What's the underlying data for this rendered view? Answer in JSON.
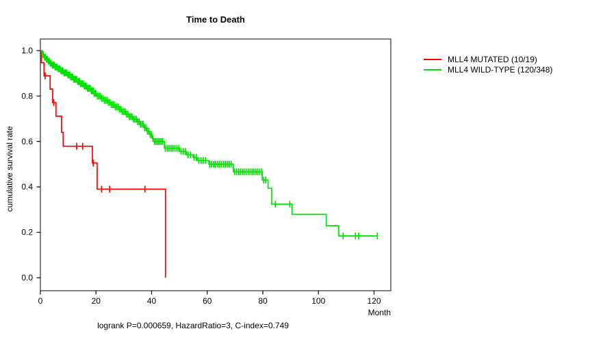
{
  "chart_data": {
    "type": "line",
    "subtype": "kaplan-meier-step",
    "title": "Time to Death",
    "xlabel": "Month",
    "ylabel": "cumulative survival rate",
    "annotation": "logrank P=0.000659, HazardRatio=3, C-index=0.749",
    "xlim": [
      0,
      126
    ],
    "ylim": [
      0.0,
      1.0
    ],
    "grid": false,
    "legend_position": "right-outside",
    "x_tick_values": [
      0,
      20,
      40,
      60,
      80,
      100,
      120
    ],
    "x_tick_labels": [
      "0",
      "20",
      "40",
      "60",
      "80",
      "100",
      "120"
    ],
    "y_tick_values": [
      1.0,
      0.8,
      0.6,
      0.4,
      0.2,
      0.0
    ],
    "y_tick_labels": [
      "1.0",
      "0.8",
      "0.6",
      "0.4",
      "0.2",
      "0.0"
    ],
    "series": [
      {
        "name": "MLL4 MUTATED (10/19)",
        "color": "#ff0000",
        "steps": [
          [
            0,
            1.0
          ],
          [
            0.35,
            0.947
          ],
          [
            1.3,
            0.889
          ],
          [
            3.5,
            0.831
          ],
          [
            4.4,
            0.771
          ],
          [
            5.6,
            0.711
          ],
          [
            7.6,
            0.64
          ],
          [
            8.2,
            0.579
          ],
          [
            18.7,
            0.505
          ],
          [
            20.4,
            0.39
          ],
          [
            45,
            0.0
          ]
        ],
        "censor_months": [
          1.7,
          4.8,
          13.0,
          15.2,
          19.0,
          22.0,
          24.9,
          37.6
        ],
        "end_month": 45
      },
      {
        "name": "MLL4 WILD-TYPE (120/348)",
        "color": "#00e100",
        "steps": [
          [
            0,
            1.0
          ],
          [
            0.6,
            0.983
          ],
          [
            1.2,
            0.971
          ],
          [
            1.9,
            0.962
          ],
          [
            2.6,
            0.953
          ],
          [
            3.4,
            0.944
          ],
          [
            4.3,
            0.936
          ],
          [
            5.3,
            0.928
          ],
          [
            6.3,
            0.92
          ],
          [
            7.4,
            0.911
          ],
          [
            8.5,
            0.902
          ],
          [
            9.6,
            0.893
          ],
          [
            10.8,
            0.884
          ],
          [
            12,
            0.874
          ],
          [
            13.2,
            0.864
          ],
          [
            14.4,
            0.854
          ],
          [
            15.6,
            0.844
          ],
          [
            16.8,
            0.834
          ],
          [
            18,
            0.823
          ],
          [
            19.2,
            0.812
          ],
          [
            20.4,
            0.8
          ],
          [
            21.6,
            0.79
          ],
          [
            22.9,
            0.781
          ],
          [
            24.2,
            0.772
          ],
          [
            25.5,
            0.762
          ],
          [
            26.8,
            0.752
          ],
          [
            28.1,
            0.742
          ],
          [
            29.4,
            0.731
          ],
          [
            30.7,
            0.72
          ],
          [
            32,
            0.709
          ],
          [
            33.3,
            0.698
          ],
          [
            34.6,
            0.687
          ],
          [
            35.9,
            0.676
          ],
          [
            37.2,
            0.66
          ],
          [
            38.4,
            0.645
          ],
          [
            39.4,
            0.63
          ],
          [
            40.2,
            0.612
          ],
          [
            41,
            0.6
          ],
          [
            44.6,
            0.57
          ],
          [
            50,
            0.556
          ],
          [
            52.5,
            0.541
          ],
          [
            54.9,
            0.53
          ],
          [
            56.4,
            0.516
          ],
          [
            60.6,
            0.5
          ],
          [
            69.4,
            0.466
          ],
          [
            79.8,
            0.43
          ],
          [
            81.9,
            0.394
          ],
          [
            83.2,
            0.324
          ],
          [
            90.5,
            0.279
          ],
          [
            102.8,
            0.229
          ],
          [
            107.3,
            0.184
          ]
        ],
        "censor_months": [
          0.8,
          1.1,
          1.5,
          1.8,
          2.2,
          2.5,
          2.9,
          3.2,
          3.6,
          3.9,
          4.3,
          4.6,
          5.0,
          5.3,
          5.7,
          6.0,
          6.4,
          6.7,
          7.1,
          7.4,
          7.8,
          8.1,
          8.5,
          8.8,
          9.2,
          9.5,
          9.9,
          10.2,
          10.6,
          10.9,
          11.3,
          11.6,
          12.0,
          12.3,
          12.7,
          13.0,
          13.4,
          13.7,
          14.1,
          14.4,
          14.8,
          15.1,
          15.5,
          15.8,
          16.2,
          16.5,
          16.9,
          17.2,
          17.6,
          17.9,
          18.3,
          18.6,
          19.0,
          19.3,
          19.7,
          20.0,
          20.5,
          21.0,
          21.5,
          22.0,
          22.5,
          23.0,
          23.5,
          24.0,
          24.5,
          25.0,
          25.5,
          26.0,
          26.5,
          27.0,
          27.5,
          28.0,
          28.5,
          29.0,
          29.5,
          30.0,
          30.5,
          31.0,
          31.5,
          32.0,
          32.5,
          33.0,
          33.5,
          34.0,
          34.5,
          35.0,
          35.5,
          36.0,
          36.5,
          37.0,
          37.5,
          38.0,
          38.5,
          39.0,
          39.5,
          40.0,
          40.5,
          41.0,
          41.5,
          42.0,
          42.5,
          43.0,
          43.5,
          44.0,
          44.9,
          45.6,
          46.3,
          47.0,
          47.7,
          48.4,
          49.1,
          49.8,
          50.6,
          51.4,
          52.2,
          53.1,
          54.0,
          55.3,
          56.1,
          57.0,
          57.8,
          58.6,
          59.4,
          60.9,
          61.6,
          62.3,
          63.0,
          63.7,
          64.4,
          65.1,
          65.8,
          66.5,
          67.2,
          67.9,
          68.6,
          69.8,
          70.5,
          71.2,
          71.9,
          72.6,
          73.3,
          74.0,
          74.7,
          75.4,
          76.1,
          76.8,
          77.5,
          78.2,
          78.9,
          79.6,
          80.3,
          81.0,
          84.5,
          89.7,
          108.9,
          113.3,
          114.5,
          121.2
        ],
        "end_month": 121.2
      }
    ]
  }
}
